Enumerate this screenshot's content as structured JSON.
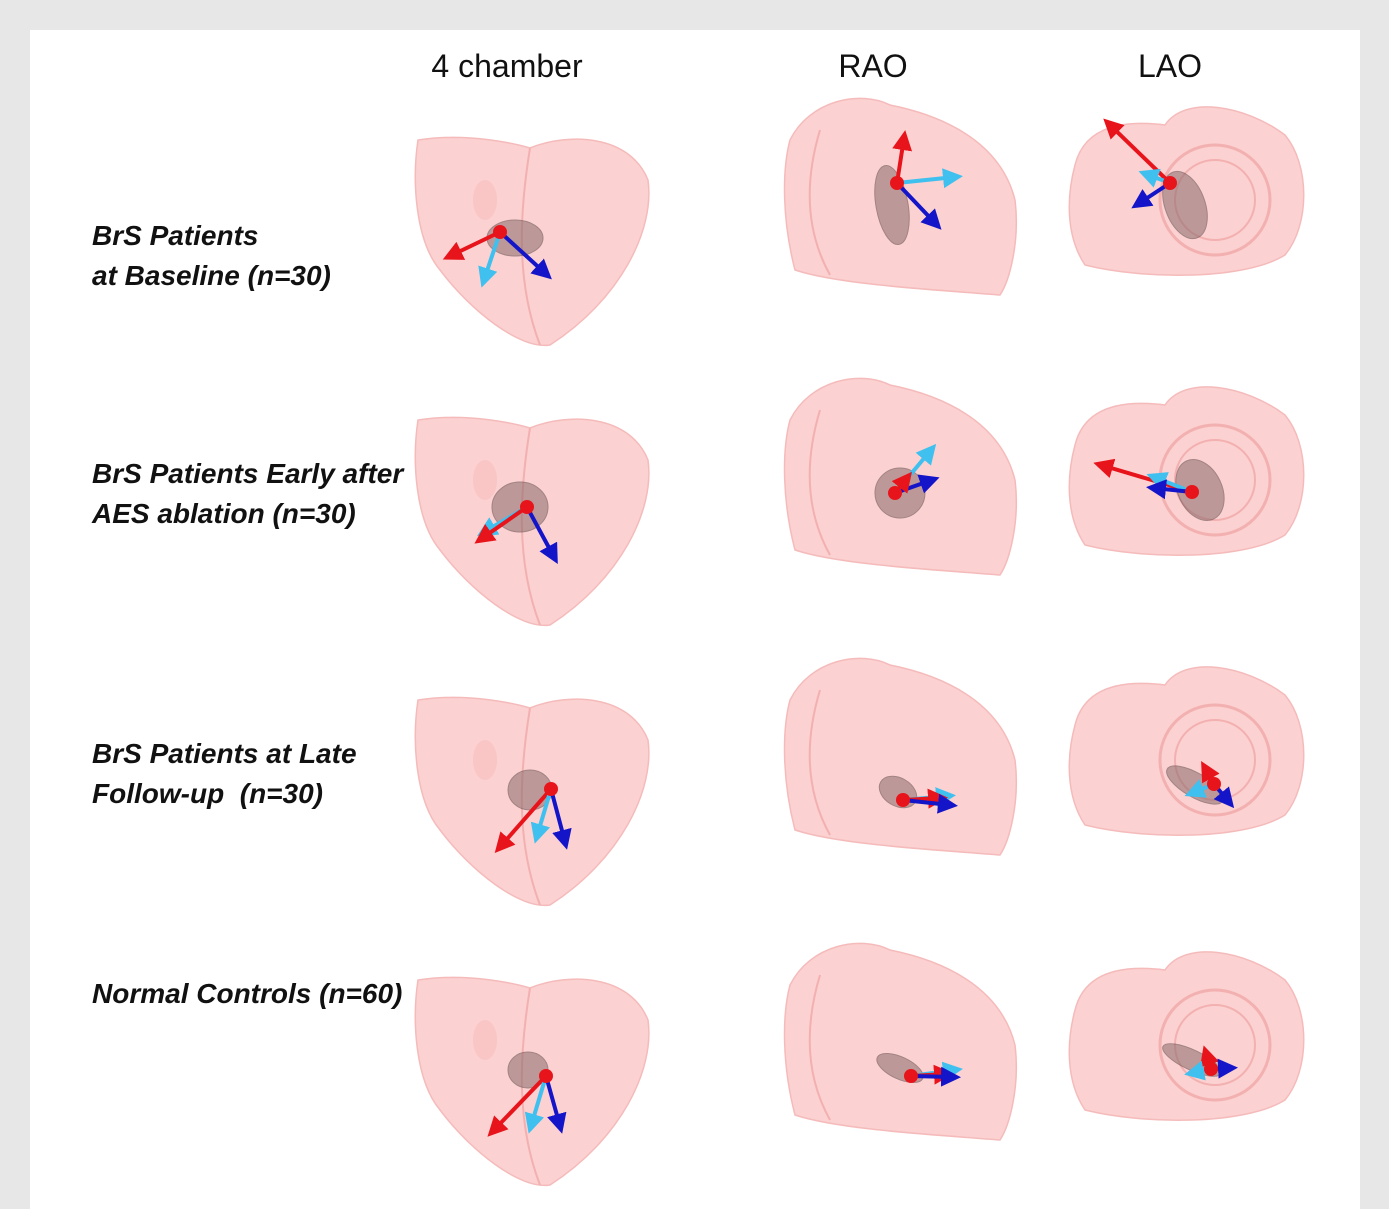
{
  "header": {
    "columns": [
      "4 chamber",
      "RAO",
      "LAO"
    ]
  },
  "rows": [
    {
      "lines": [
        "BrS Patients",
        "at Baseline (n=30)"
      ]
    },
    {
      "lines": [
        "BrS Patients Early after",
        "AES ablation (n=30)"
      ]
    },
    {
      "lines": [
        "BrS Patients at Late",
        "Follow-up  (n=30)"
      ]
    },
    {
      "lines": [
        "Normal Controls (n=60)"
      ]
    }
  ]
}
